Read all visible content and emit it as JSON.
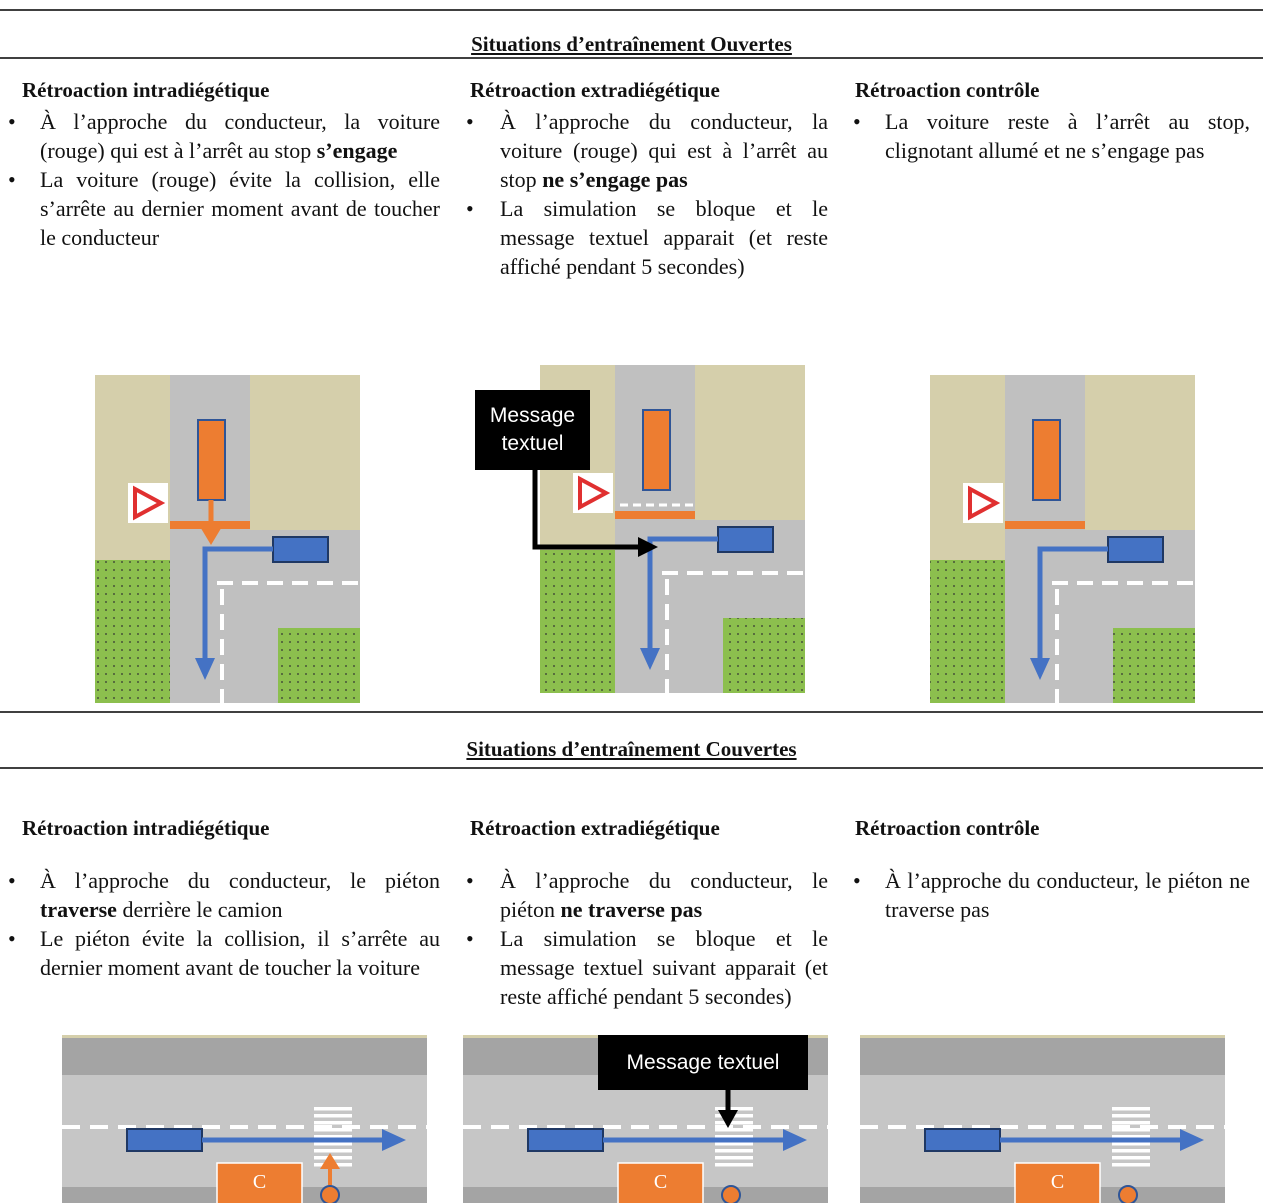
{
  "sections": [
    {
      "title": "Situations d’entraînement Ouvertes",
      "columns": [
        {
          "heading": "Rétroaction intradiégétique",
          "bullets": [
            [
              "À l’approche du conducteur, la voiture (rouge) qui est à l’arrêt au stop ",
              {
                "bold": "s’engage"
              }
            ],
            [
              "La voiture (rouge) évite la collision, elle s’arrête au dernier moment avant de toucher le conducteur"
            ]
          ]
        },
        {
          "heading": "Rétroaction extradiégétique",
          "bullets": [
            [
              "À l’approche du conducteur, la voiture (rouge) qui est à l’arrêt au stop ",
              {
                "bold": "ne s’engage pas"
              }
            ],
            [
              "La simulation se bloque et le message textuel apparait (et reste affiché pendant 5 secondes)"
            ]
          ],
          "diagram_texts": {
            "message": "Message textuel"
          }
        },
        {
          "heading": "Rétroaction contrôle",
          "bullets": [
            [
              "La voiture reste à l’arrêt au stop, clignotant allumé et ne s’engage pas"
            ]
          ]
        }
      ]
    },
    {
      "title": "Situations d’entraînement Couvertes",
      "columns": [
        {
          "heading": "Rétroaction intradiégétique",
          "bullets": [
            [
              "À l’approche du conducteur, le piéton ",
              {
                "bold": "traverse"
              },
              " derrière le camion"
            ],
            [
              "Le piéton évite la collision, il s’arrête au dernier moment avant de toucher la voiture"
            ]
          ],
          "diagram_texts": {
            "truck": "C"
          }
        },
        {
          "heading": "Rétroaction extradiégétique",
          "bullets": [
            [
              "À l’approche du conducteur, le piéton ",
              {
                "bold": "ne traverse pas"
              }
            ],
            [
              "La simulation se bloque et le message textuel suivant apparait (et reste affiché pendant 5 secondes)"
            ]
          ],
          "diagram_texts": {
            "message": "Message textuel",
            "truck": "C"
          }
        },
        {
          "heading": "Rétroaction contrôle",
          "bullets": [
            [
              "À l’approche du conducteur, le piéton ne traverse pas"
            ]
          ],
          "diagram_texts": {
            "truck": "C"
          }
        }
      ]
    }
  ]
}
